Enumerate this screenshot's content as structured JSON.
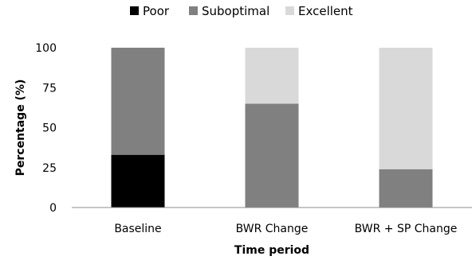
{
  "chart_data": {
    "type": "bar",
    "stacked": true,
    "categories": [
      "Baseline",
      "BWR Change",
      "BWR + SP Change"
    ],
    "series": [
      {
        "name": "Poor",
        "values": [
          33,
          0,
          0
        ],
        "color": "#000000"
      },
      {
        "name": "Suboptimal",
        "values": [
          67,
          65,
          24
        ],
        "color": "#808080"
      },
      {
        "name": "Excellent",
        "values": [
          0,
          35,
          76
        ],
        "color": "#d9d9d9"
      }
    ],
    "xlabel": "Time period",
    "ylabel": "Percentage (%)",
    "ylim": [
      0,
      100
    ],
    "yticks": [
      "0",
      "25",
      "50",
      "75",
      "100"
    ],
    "grid": false,
    "legend_position": "top"
  }
}
